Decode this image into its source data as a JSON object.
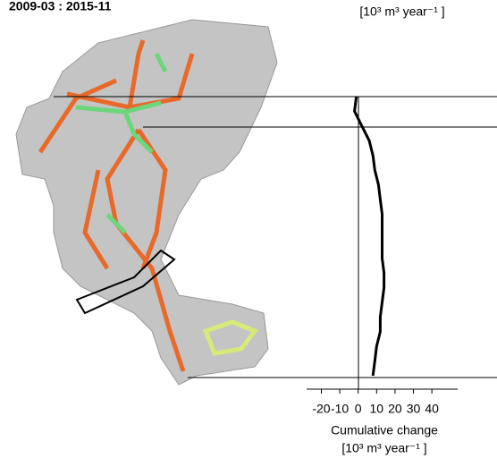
{
  "chart_data": {
    "type": "line",
    "title": "2009-03 : 2015-11",
    "top_unit": "[10³ m³ year⁻¹ ]",
    "xlabel": "Cumulative change",
    "xunit": "[10³ m³ year⁻¹ ]",
    "series": [
      {
        "color": "#000000",
        "values": [
          -1,
          -2,
          2,
          6,
          8,
          9,
          11,
          12,
          13,
          13,
          13,
          13,
          14,
          14,
          13,
          12,
          12,
          10,
          9,
          8
        ]
      }
    ],
    "xlim": [
      -28,
      54
    ],
    "xticks": [
      -20,
      -10,
      0,
      10,
      20,
      30,
      40
    ]
  }
}
